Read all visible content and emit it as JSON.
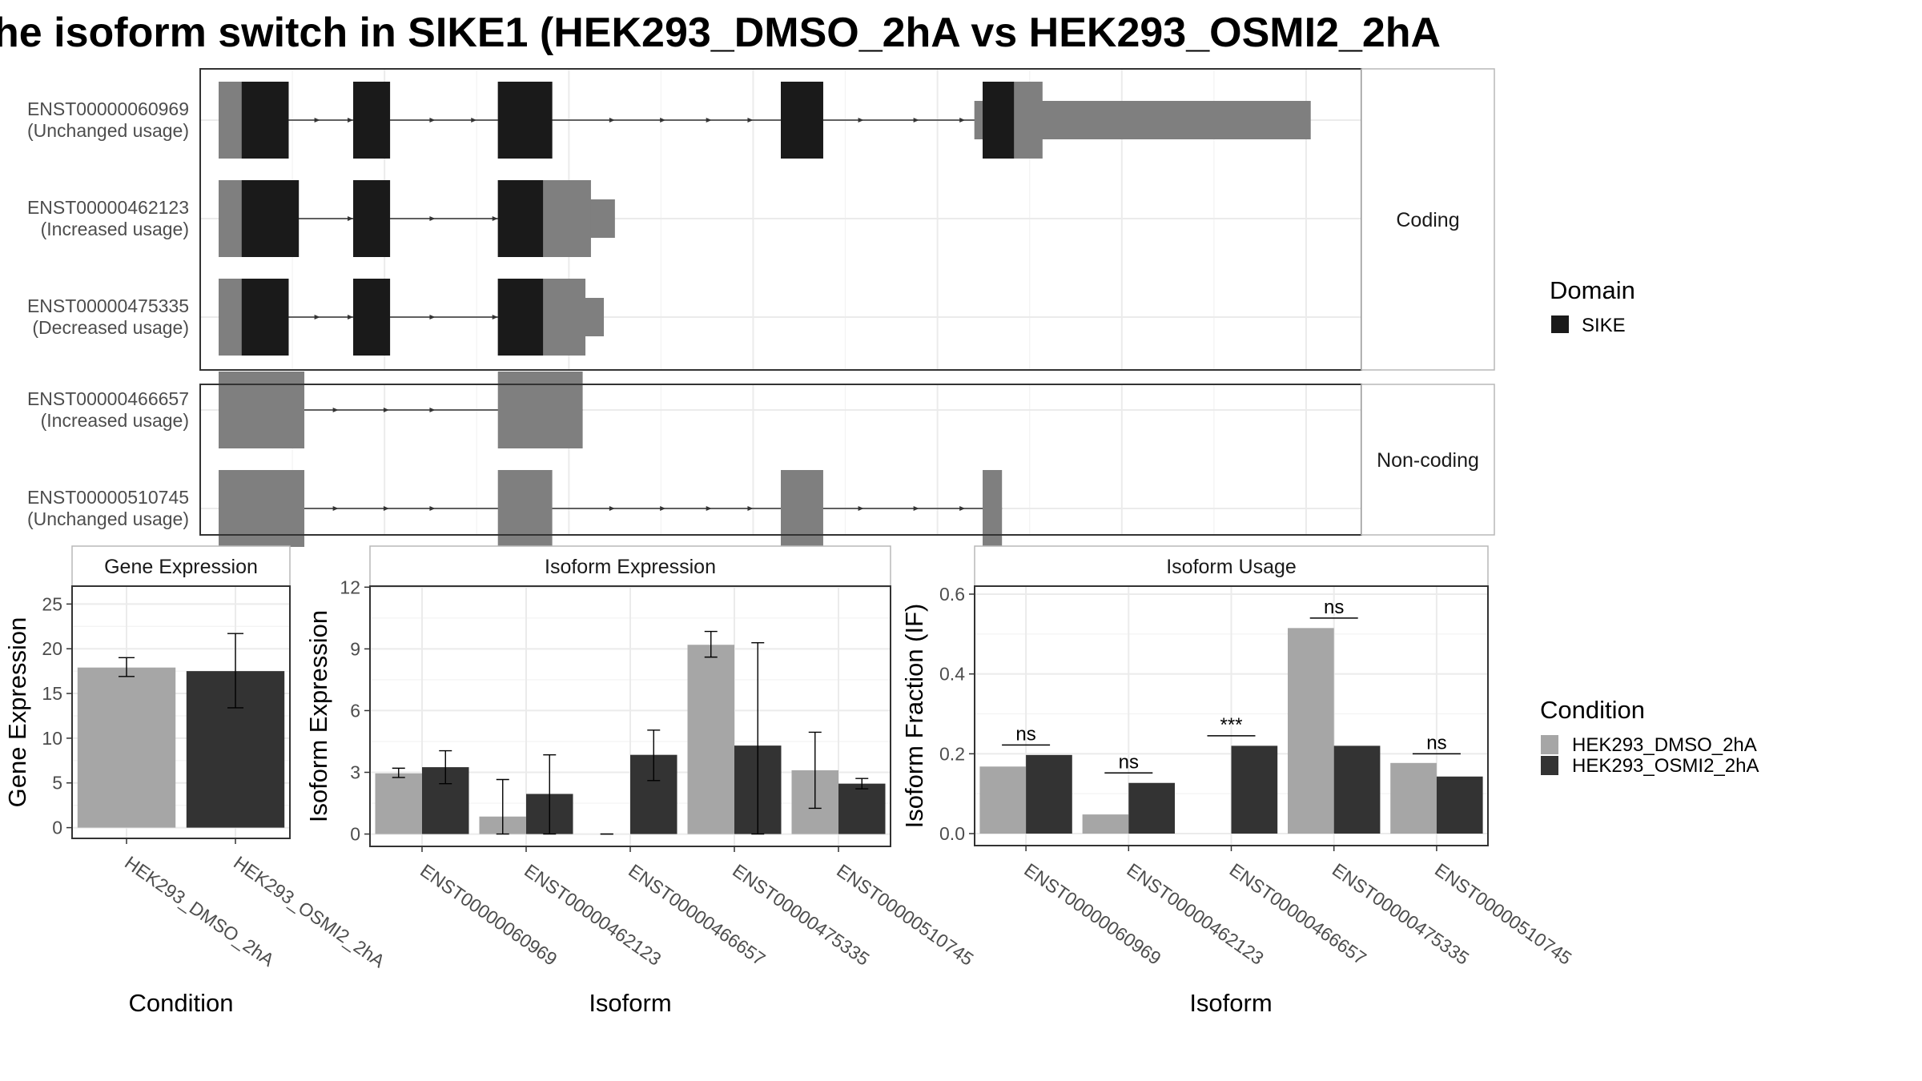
{
  "colors": {
    "domain": "#1a1a1a",
    "exon": "#7f7f7f",
    "intron": "#333333",
    "dmso": "#a6a6a6",
    "osmi2": "#333333"
  },
  "chart_data": [
    {
      "type": "gene-structure",
      "title": "he isoform switch in SIKE1 (HEK293_DMSO_2hA vs HEK293_OSMI2_2hA",
      "legend": {
        "title": "Domain",
        "entries": [
          "SIKE"
        ],
        "position": "right"
      },
      "facets": [
        {
          "label": "Coding",
          "transcripts": [
            {
              "id": "ENST00000060969",
              "usage": "(Unchanged usage)",
              "utr": [
                [
                  0.2,
                  0.5
                ],
                [
                  8.4,
                  12.05
                ]
              ],
              "exons": [
                [
                  0.2,
                  0.96
                ],
                [
                  1.66,
                  2.06
                ],
                [
                  3.23,
                  3.82
                ],
                [
                  6.3,
                  6.76
                ],
                [
                  8.49,
                  9.14
                ]
              ],
              "domain": [
                [
                  0.45,
                  0.96
                ],
                [
                  1.66,
                  2.06
                ],
                [
                  3.23,
                  3.82
                ],
                [
                  6.3,
                  6.76
                ],
                [
                  8.49,
                  8.83
                ]
              ],
              "arrows": [
                1.3,
                1.66,
                2.55,
                3.0,
                4.5,
                5.05,
                5.55,
                6.0,
                7.2,
                7.8,
                8.3
              ]
            },
            {
              "id": "ENST00000462123",
              "usage": "(Increased usage)",
              "utr": [
                [
                  0.2,
                  0.5
                ],
                [
                  3.7,
                  4.5
                ]
              ],
              "exons": [
                [
                  0.2,
                  1.07
                ],
                [
                  1.66,
                  2.06
                ],
                [
                  3.23,
                  4.24
                ]
              ],
              "domain": [
                [
                  0.45,
                  1.07
                ],
                [
                  1.66,
                  2.06
                ],
                [
                  3.23,
                  3.72
                ]
              ],
              "arrows": [
                1.66,
                2.55,
                3.23
              ]
            },
            {
              "id": "ENST00000475335",
              "usage": "(Decreased usage)",
              "utr": [
                [
                  0.2,
                  0.5
                ],
                [
                  3.7,
                  4.38
                ]
              ],
              "exons": [
                [
                  0.2,
                  0.96
                ],
                [
                  1.66,
                  2.06
                ],
                [
                  3.23,
                  4.18
                ]
              ],
              "domain": [
                [
                  0.45,
                  0.96
                ],
                [
                  1.66,
                  2.06
                ],
                [
                  3.23,
                  3.72
                ]
              ],
              "arrows": [
                1.3,
                1.66,
                2.55,
                3.23
              ]
            }
          ]
        },
        {
          "label": "Non-coding",
          "transcripts": [
            {
              "id": "ENST00000466657",
              "usage": "(Increased usage)",
              "utr": [],
              "exons": [
                [
                  0.2,
                  1.13
                ],
                [
                  3.23,
                  4.15
                ]
              ],
              "domain": [],
              "arrows": [
                1.5,
                2.05,
                2.55
              ]
            },
            {
              "id": "ENST00000510745",
              "usage": "(Unchanged usage)",
              "utr": [],
              "exons": [
                [
                  0.2,
                  1.13
                ],
                [
                  3.23,
                  3.82
                ],
                [
                  6.3,
                  6.76
                ],
                [
                  8.49,
                  8.7
                ]
              ],
              "domain": [],
              "arrows": [
                1.5,
                2.05,
                2.55,
                4.5,
                5.05,
                5.55,
                6.0,
                7.2,
                7.8,
                8.3
              ]
            }
          ]
        }
      ]
    },
    {
      "type": "bar",
      "title": "Gene Expression",
      "xlabel": "Condition",
      "ylabel": "Gene Expression",
      "ylim": [
        -1.2,
        27
      ],
      "yticks": [
        0,
        5,
        10,
        15,
        20,
        25
      ],
      "categories": [
        "HEK293_DMSO_2hA",
        "HEK293_OSMI2_2hA"
      ],
      "values": [
        17.9,
        17.5
      ],
      "error": [
        [
          16.9,
          19.0
        ],
        [
          13.4,
          21.7
        ]
      ],
      "colors": [
        "dmso",
        "osmi2"
      ]
    },
    {
      "type": "bar",
      "title": "Isoform Expression",
      "xlabel": "Isoform",
      "ylabel": "Isoform Expression",
      "ylim": [
        -0.6,
        12.05
      ],
      "yticks": [
        0,
        3,
        6,
        9,
        12
      ],
      "categories": [
        "ENST00000060969",
        "ENST00000462123",
        "ENST00000466657",
        "ENST00000475335",
        "ENST00000510745"
      ],
      "series": [
        {
          "name": "HEK293_DMSO_2hA",
          "values": [
            2.95,
            0.85,
            0.0,
            9.2,
            3.1
          ],
          "error": [
            [
              2.75,
              3.2
            ],
            [
              0.0,
              2.65
            ],
            [
              0.0,
              0.0
            ],
            [
              8.6,
              9.85
            ],
            [
              1.25,
              4.95
            ]
          ]
        },
        {
          "name": "HEK293_OSMI2_2hA",
          "values": [
            3.25,
            1.95,
            3.85,
            4.3,
            2.45
          ],
          "error": [
            [
              2.45,
              4.05
            ],
            [
              0.0,
              3.85
            ],
            [
              2.6,
              5.05
            ],
            [
              0.0,
              9.3
            ],
            [
              2.2,
              2.7
            ]
          ]
        }
      ]
    },
    {
      "type": "bar",
      "title": "Isoform Usage",
      "xlabel": "Isoform",
      "ylabel": "Isoform Fraction (IF)",
      "ylim": [
        -0.03,
        0.62
      ],
      "yticks": [
        0.0,
        0.2,
        0.4,
        0.6
      ],
      "ytickLabels": [
        "0.0",
        "0.2",
        "0.4",
        "0.6"
      ],
      "categories": [
        "ENST00000060969",
        "ENST00000462123",
        "ENST00000466657",
        "ENST00000475335",
        "ENST00000510745"
      ],
      "series": [
        {
          "name": "HEK293_DMSO_2hA",
          "values": [
            0.168,
            0.048,
            0.0,
            0.515,
            0.177
          ]
        },
        {
          "name": "HEK293_OSMI2_2hA",
          "values": [
            0.197,
            0.127,
            0.22,
            0.22,
            0.143
          ]
        }
      ],
      "significance": [
        {
          "label": "ns",
          "y": 0.222
        },
        {
          "label": "ns",
          "y": 0.152
        },
        {
          "label": "***",
          "y": 0.245
        },
        {
          "label": "ns",
          "y": 0.54
        },
        {
          "label": "ns",
          "y": 0.2
        }
      ],
      "legend": {
        "title": "Condition",
        "entries": [
          "HEK293_DMSO_2hA",
          "HEK293_OSMI2_2hA"
        ],
        "position": "right"
      }
    }
  ]
}
